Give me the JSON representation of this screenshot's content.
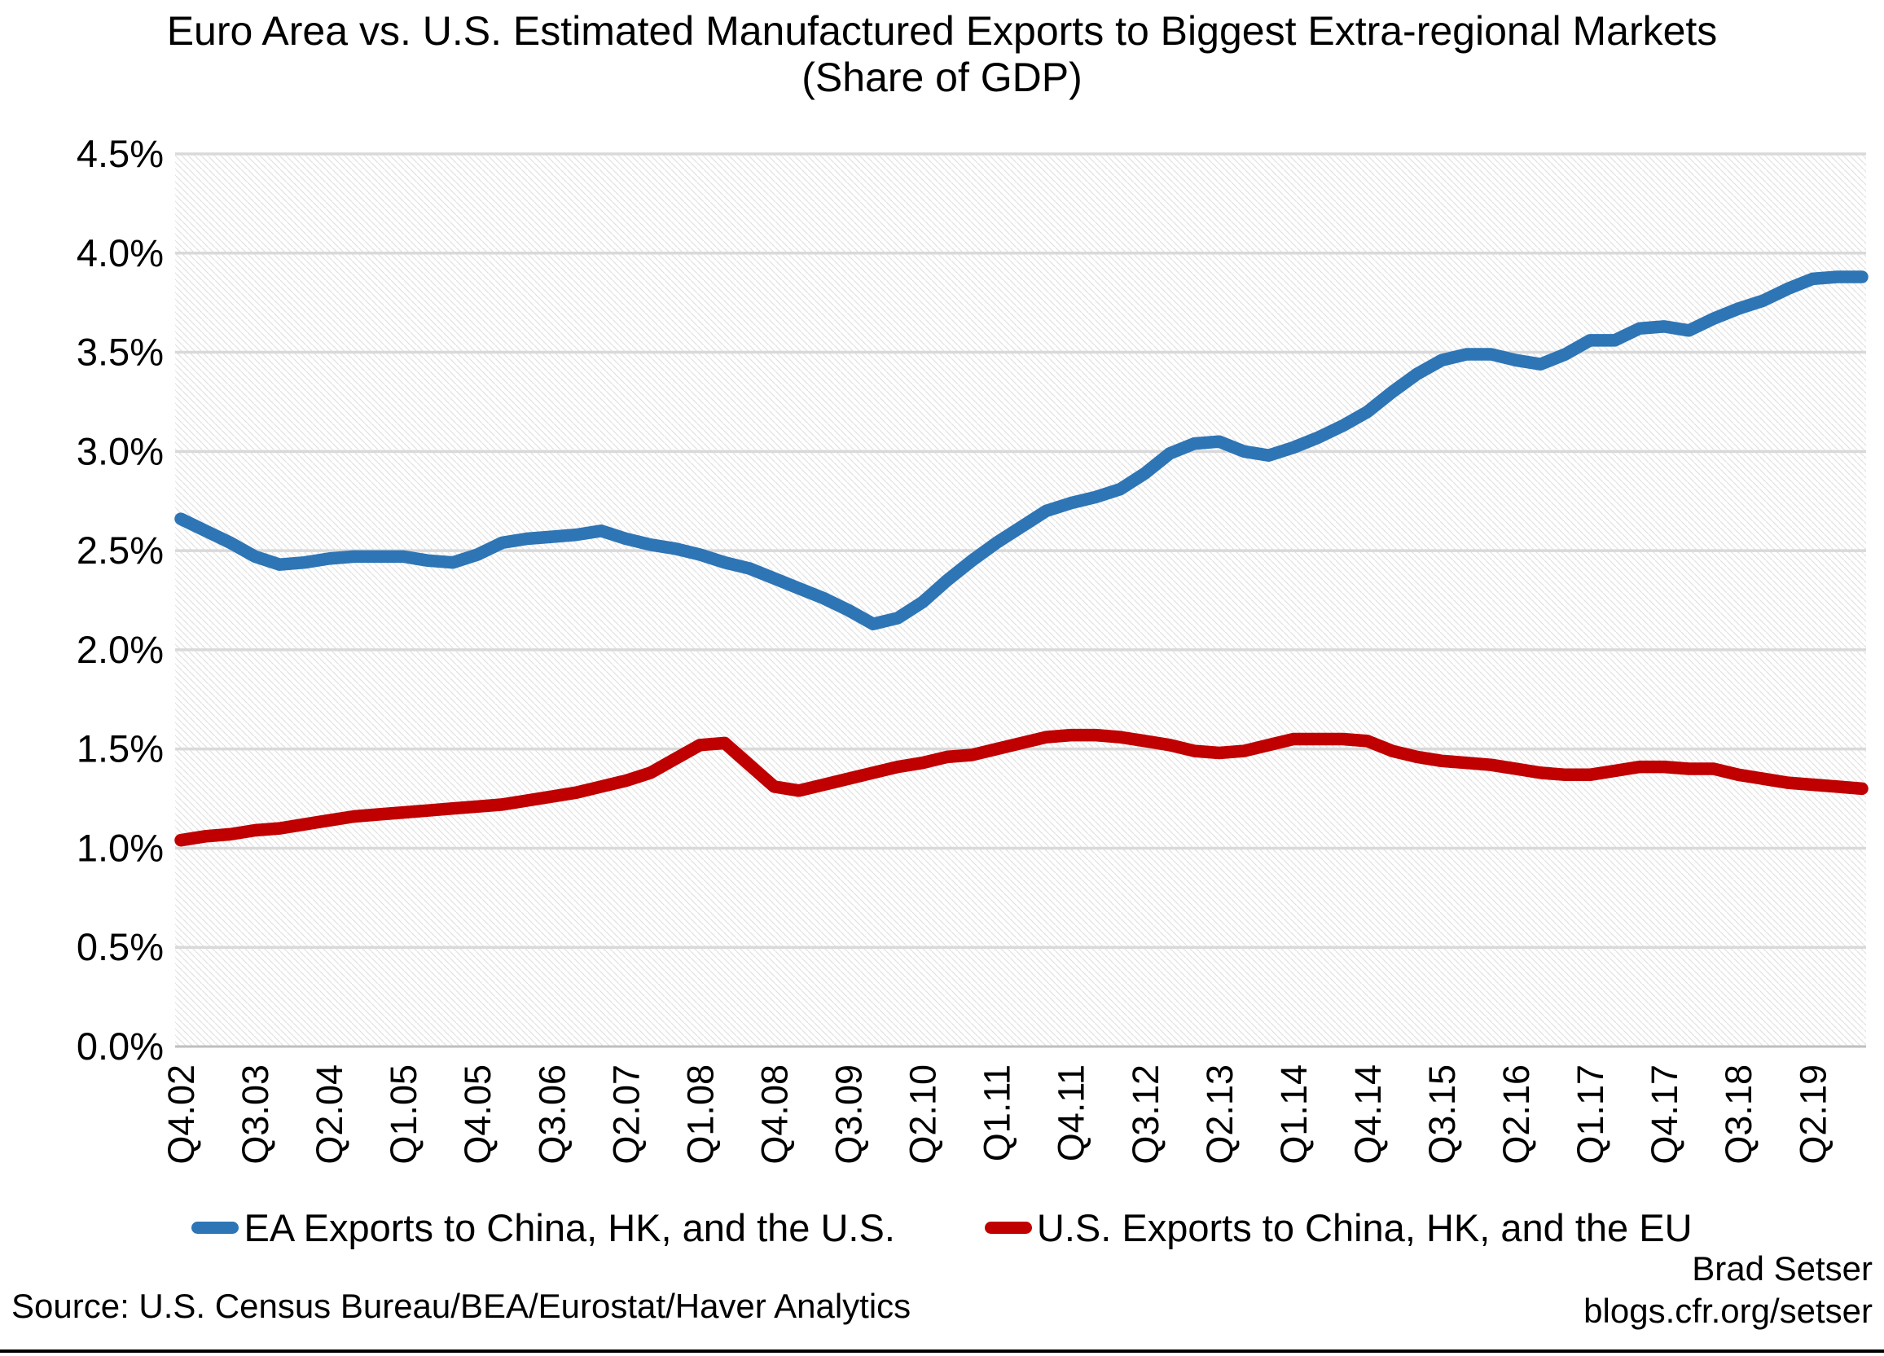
{
  "title": {
    "line1": "Euro Area vs. U.S. Estimated Manufactured Exports to Biggest Extra-regional Markets",
    "line2": "(Share of GDP)"
  },
  "legend": [
    {
      "label": "EA Exports to China, HK, and the U.S.",
      "color": "#2E75B6"
    },
    {
      "label": "U.S. Exports to China, HK, and the EU",
      "color": "#C00000"
    }
  ],
  "source_note": "Source: U.S. Census Bureau/BEA/Eurostat/Haver Analytics",
  "credit": {
    "author": "Brad Setser",
    "site": "blogs.cfr.org/setser"
  },
  "colors": {
    "ea_line": "#2E75B6",
    "us_line": "#C00000",
    "gridline": "#D9D9D9",
    "axis_line": "#BFBFBF",
    "hatch": "#E2E2E2",
    "text": "#000000",
    "bottom_rule": "#000000"
  },
  "chart_data": {
    "type": "line",
    "title": "Euro Area vs. U.S. Estimated Manufactured Exports to Biggest Extra-regional Markets (Share of GDP)",
    "xlabel": "",
    "ylabel": "",
    "ylim": [
      0,
      4.5
    ],
    "ytick_step": 0.5,
    "ytick_format": "percent-1-decimal",
    "grid": true,
    "plot_background": "light-diagonal-hatch",
    "legend_position": "bottom",
    "x_tick_every": 3,
    "x_tick_labels": [
      "Q4.02",
      "Q3.03",
      "Q2.04",
      "Q1.05",
      "Q4.05",
      "Q3.06",
      "Q2.07",
      "Q1.08",
      "Q4.08",
      "Q3.09",
      "Q2.10",
      "Q1.11",
      "Q4.11",
      "Q3.12",
      "Q2.13",
      "Q1.14",
      "Q4.14",
      "Q3.15",
      "Q2.16",
      "Q1.17",
      "Q4.17",
      "Q3.18",
      "Q2.19"
    ],
    "categories": [
      "Q4.02",
      "Q1.03",
      "Q2.03",
      "Q3.03",
      "Q4.03",
      "Q1.04",
      "Q2.04",
      "Q3.04",
      "Q4.04",
      "Q1.05",
      "Q2.05",
      "Q3.05",
      "Q4.05",
      "Q1.06",
      "Q2.06",
      "Q3.06",
      "Q4.06",
      "Q1.07",
      "Q2.07",
      "Q3.07",
      "Q4.07",
      "Q1.08",
      "Q2.08",
      "Q3.08",
      "Q4.08",
      "Q1.09",
      "Q2.09",
      "Q3.09",
      "Q4.09",
      "Q1.10",
      "Q2.10",
      "Q3.10",
      "Q4.10",
      "Q1.11",
      "Q2.11",
      "Q3.11",
      "Q4.11",
      "Q1.12",
      "Q2.12",
      "Q3.12",
      "Q4.12",
      "Q1.13",
      "Q2.13",
      "Q3.13",
      "Q4.13",
      "Q1.14",
      "Q2.14",
      "Q3.14",
      "Q4.14",
      "Q1.15",
      "Q2.15",
      "Q3.15",
      "Q4.15",
      "Q1.16",
      "Q2.16",
      "Q3.16",
      "Q4.16",
      "Q1.17",
      "Q2.17",
      "Q3.17",
      "Q4.17",
      "Q1.18",
      "Q2.18",
      "Q3.18",
      "Q4.18",
      "Q1.19",
      "Q2.19",
      "Q3.19",
      "Q4.19"
    ],
    "series": [
      {
        "name": "EA Exports to China, HK, and the U.S.",
        "color": "#2E75B6",
        "values": [
          2.66,
          2.6,
          2.54,
          2.47,
          2.43,
          2.44,
          2.46,
          2.47,
          2.47,
          2.47,
          2.45,
          2.44,
          2.48,
          2.54,
          2.56,
          2.57,
          2.58,
          2.6,
          2.56,
          2.53,
          2.51,
          2.48,
          2.44,
          2.41,
          2.36,
          2.31,
          2.26,
          2.2,
          2.13,
          2.16,
          2.24,
          2.35,
          2.45,
          2.54,
          2.62,
          2.7,
          2.74,
          2.77,
          2.81,
          2.89,
          2.99,
          3.04,
          3.05,
          3.0,
          2.98,
          3.02,
          3.07,
          3.13,
          3.2,
          3.3,
          3.39,
          3.46,
          3.49,
          3.49,
          3.46,
          3.44,
          3.49,
          3.56,
          3.56,
          3.62,
          3.63,
          3.61,
          3.67,
          3.72,
          3.76,
          3.82,
          3.87,
          3.88,
          3.88
        ]
      },
      {
        "name": "U.S. Exports to China, HK, and the EU",
        "color": "#C00000",
        "values": [
          1.04,
          1.06,
          1.07,
          1.09,
          1.1,
          1.12,
          1.14,
          1.16,
          1.17,
          1.18,
          1.19,
          1.2,
          1.21,
          1.22,
          1.24,
          1.26,
          1.28,
          1.31,
          1.34,
          1.38,
          1.45,
          1.52,
          1.53,
          1.42,
          1.31,
          1.29,
          1.32,
          1.35,
          1.38,
          1.41,
          1.43,
          1.46,
          1.47,
          1.5,
          1.53,
          1.56,
          1.57,
          1.57,
          1.56,
          1.54,
          1.52,
          1.49,
          1.48,
          1.49,
          1.52,
          1.55,
          1.55,
          1.55,
          1.54,
          1.49,
          1.46,
          1.44,
          1.43,
          1.42,
          1.4,
          1.38,
          1.37,
          1.37,
          1.39,
          1.41,
          1.41,
          1.4,
          1.4,
          1.37,
          1.35,
          1.33,
          1.32,
          1.31,
          1.3
        ]
      }
    ]
  }
}
